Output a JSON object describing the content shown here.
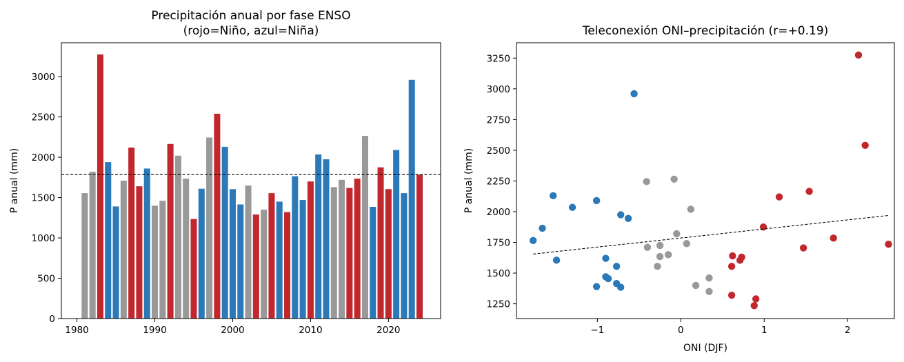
{
  "chart_data": [
    {
      "type": "bar",
      "title": "Precipitación anual por fase ENSO",
      "subtitle": "(rojo=Niño, azul=Niña)",
      "xlabel": "",
      "ylabel": "P anual (mm)",
      "xlim": [
        1978,
        2026.7
      ],
      "ylim": [
        0,
        3420
      ],
      "xticks": [
        1980,
        1990,
        2000,
        2010,
        2020
      ],
      "yticks": [
        0,
        500,
        1000,
        1500,
        2000,
        2500,
        3000
      ],
      "grid": false,
      "mean_line": 1785,
      "phase_colors": {
        "nino": "#c1272d",
        "nina": "#2b79b9",
        "neutral": "#999999"
      },
      "years": [
        1981,
        1982,
        1983,
        1984,
        1985,
        1986,
        1987,
        1988,
        1989,
        1990,
        1991,
        1992,
        1993,
        1994,
        1995,
        1996,
        1997,
        1998,
        1999,
        2000,
        2001,
        2002,
        2003,
        2004,
        2005,
        2006,
        2007,
        2008,
        2009,
        2010,
        2011,
        2012,
        2013,
        2014,
        2015,
        2016,
        2017,
        2018,
        2019,
        2020,
        2021,
        2022,
        2023,
        2024
      ],
      "values": [
        1555,
        1820,
        3275,
        1940,
        1390,
        1710,
        2120,
        1640,
        1860,
        1400,
        1460,
        2165,
        2020,
        1735,
        1235,
        1610,
        2245,
        2540,
        2130,
        1605,
        1415,
        1650,
        1290,
        1350,
        1555,
        1450,
        1320,
        1765,
        1470,
        1700,
        2035,
        1975,
        1630,
        1720,
        1620,
        1735,
        2265,
        1385,
        1875,
        1605,
        2090,
        1555,
        2960,
        1785
      ],
      "phases": [
        "neutral",
        "neutral",
        "nino",
        "nina",
        "nina",
        "neutral",
        "nino",
        "nino",
        "nina",
        "neutral",
        "neutral",
        "nino",
        "neutral",
        "neutral",
        "nino",
        "nina",
        "neutral",
        "nino",
        "nina",
        "nina",
        "nina",
        "neutral",
        "nino",
        "neutral",
        "nino",
        "nina",
        "nino",
        "nina",
        "nina",
        "nino",
        "nina",
        "nina",
        "neutral",
        "neutral",
        "nino",
        "nino",
        "neutral",
        "nina",
        "nino",
        "nino",
        "nina",
        "nina",
        "nina",
        "nino"
      ]
    },
    {
      "type": "scatter",
      "title": "Teleconexión ONI–precipitación (r=+0.19)",
      "xlabel": "ONI (DJF)",
      "ylabel": "P anual (mm)",
      "xlim": [
        -1.97,
        2.56
      ],
      "ylim": [
        1130,
        3375
      ],
      "xticks": [
        -1,
        0,
        1,
        2
      ],
      "xtick_labels": [
        "−1",
        "0",
        "1",
        "2"
      ],
      "yticks": [
        1250,
        1500,
        1750,
        2000,
        2250,
        2500,
        2750,
        3000,
        3250
      ],
      "grid": false,
      "trend_line": {
        "x": [
          -1.77,
          2.5
        ],
        "y": [
          1655,
          1970
        ]
      },
      "points": [
        {
          "x": -1.77,
          "y": 1765,
          "phase": "nina"
        },
        {
          "x": -1.66,
          "y": 1865,
          "phase": "nina"
        },
        {
          "x": -1.53,
          "y": 2130,
          "phase": "nina"
        },
        {
          "x": -1.49,
          "y": 1605,
          "phase": "nina"
        },
        {
          "x": -1.3,
          "y": 2035,
          "phase": "nina"
        },
        {
          "x": -1.01,
          "y": 2090,
          "phase": "nina"
        },
        {
          "x": -1.01,
          "y": 1390,
          "phase": "nina"
        },
        {
          "x": -0.9,
          "y": 1620,
          "phase": "nina"
        },
        {
          "x": -0.9,
          "y": 1470,
          "phase": "nina"
        },
        {
          "x": -0.87,
          "y": 1455,
          "phase": "nina"
        },
        {
          "x": -0.77,
          "y": 1555,
          "phase": "nina"
        },
        {
          "x": -0.77,
          "y": 1415,
          "phase": "nina"
        },
        {
          "x": -0.72,
          "y": 1975,
          "phase": "nina"
        },
        {
          "x": -0.72,
          "y": 1385,
          "phase": "nina"
        },
        {
          "x": -0.63,
          "y": 1945,
          "phase": "nina"
        },
        {
          "x": -0.56,
          "y": 2960,
          "phase": "nina"
        },
        {
          "x": -0.41,
          "y": 2245,
          "phase": "neutral"
        },
        {
          "x": -0.4,
          "y": 1710,
          "phase": "neutral"
        },
        {
          "x": -0.28,
          "y": 1555,
          "phase": "neutral"
        },
        {
          "x": -0.25,
          "y": 1725,
          "phase": "neutral"
        },
        {
          "x": -0.25,
          "y": 1635,
          "phase": "neutral"
        },
        {
          "x": -0.15,
          "y": 1650,
          "phase": "neutral"
        },
        {
          "x": -0.08,
          "y": 2265,
          "phase": "neutral"
        },
        {
          "x": -0.05,
          "y": 1820,
          "phase": "neutral"
        },
        {
          "x": 0.07,
          "y": 1740,
          "phase": "neutral"
        },
        {
          "x": 0.12,
          "y": 2020,
          "phase": "neutral"
        },
        {
          "x": 0.18,
          "y": 1400,
          "phase": "neutral"
        },
        {
          "x": 0.34,
          "y": 1460,
          "phase": "neutral"
        },
        {
          "x": 0.34,
          "y": 1350,
          "phase": "neutral"
        },
        {
          "x": 0.61,
          "y": 1320,
          "phase": "nino"
        },
        {
          "x": 0.61,
          "y": 1555,
          "phase": "nino"
        },
        {
          "x": 0.62,
          "y": 1640,
          "phase": "nino"
        },
        {
          "x": 0.71,
          "y": 1605,
          "phase": "nino"
        },
        {
          "x": 0.73,
          "y": 1630,
          "phase": "nino"
        },
        {
          "x": 0.88,
          "y": 1235,
          "phase": "nino"
        },
        {
          "x": 0.9,
          "y": 1290,
          "phase": "nino"
        },
        {
          "x": 0.99,
          "y": 1875,
          "phase": "nino"
        },
        {
          "x": 1.18,
          "y": 2120,
          "phase": "nino"
        },
        {
          "x": 1.47,
          "y": 1705,
          "phase": "nino"
        },
        {
          "x": 1.54,
          "y": 2165,
          "phase": "nino"
        },
        {
          "x": 1.83,
          "y": 1785,
          "phase": "nino"
        },
        {
          "x": 2.13,
          "y": 3275,
          "phase": "nino"
        },
        {
          "x": 2.21,
          "y": 2540,
          "phase": "nino"
        },
        {
          "x": 2.49,
          "y": 1735,
          "phase": "nino"
        }
      ]
    }
  ]
}
